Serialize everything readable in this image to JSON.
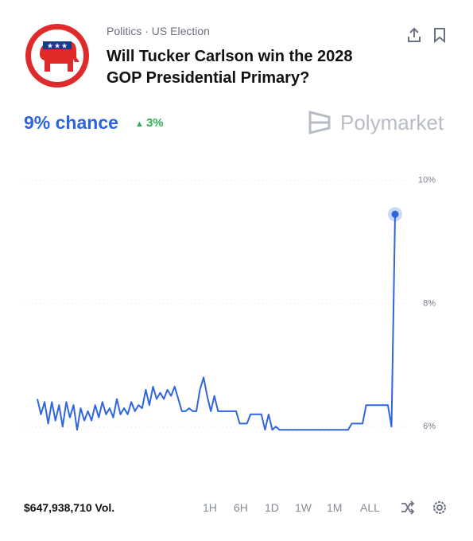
{
  "header": {
    "category": "Politics · US Election",
    "title": "Will Tucker Carlson win the 2028 GOP Presidential Primary?",
    "chance": "9% chance",
    "change": "3%",
    "brand": "Polymarket"
  },
  "chart_data": {
    "type": "line",
    "color": "#2f66e0",
    "grid": true,
    "ylim": [
      5.5,
      10.5
    ],
    "yticks": [
      {
        "value": 6,
        "label": "6%"
      },
      {
        "value": 8,
        "label": "8%"
      },
      {
        "value": 10,
        "label": "10%"
      }
    ],
    "values": [
      6.45,
      6.2,
      6.4,
      6.05,
      6.4,
      6.1,
      6.35,
      6.0,
      6.4,
      6.15,
      6.35,
      5.95,
      6.3,
      6.1,
      6.25,
      6.1,
      6.35,
      6.15,
      6.4,
      6.2,
      6.3,
      6.15,
      6.45,
      6.2,
      6.3,
      6.2,
      6.4,
      6.25,
      6.35,
      6.3,
      6.6,
      6.35,
      6.65,
      6.45,
      6.55,
      6.45,
      6.6,
      6.5,
      6.65,
      6.45,
      6.25,
      6.25,
      6.3,
      6.25,
      6.25,
      6.6,
      6.8,
      6.5,
      6.25,
      6.5,
      6.25,
      6.25,
      6.25,
      6.25,
      6.25,
      6.25,
      6.05,
      6.05,
      6.05,
      6.2,
      6.2,
      6.2,
      6.2,
      5.95,
      6.2,
      5.95,
      6.0,
      5.95,
      5.95,
      5.95,
      5.95,
      5.95,
      5.95,
      5.95,
      5.95,
      5.95,
      5.95,
      5.95,
      5.95,
      5.95,
      5.95,
      5.95,
      5.95,
      5.95,
      5.95,
      5.95,
      5.95,
      6.05,
      6.05,
      6.05,
      6.05,
      6.35,
      6.35,
      6.35,
      6.35,
      6.35,
      6.35,
      6.35,
      6.0,
      9.45
    ]
  },
  "footer": {
    "volume": "$647,938,710 Vol.",
    "ranges": [
      "1H",
      "6H",
      "1D",
      "1W",
      "1M",
      "ALL"
    ]
  }
}
